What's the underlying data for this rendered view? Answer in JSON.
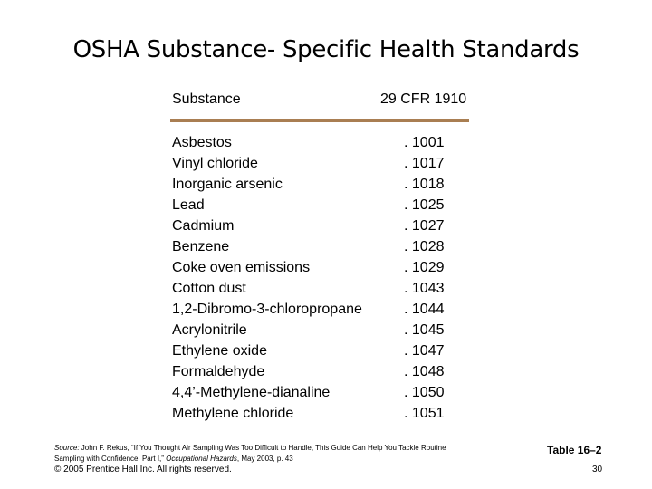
{
  "slide": {
    "title": "OSHA Substance- Specific Health Standards"
  },
  "table": {
    "headers": {
      "substance": "Substance",
      "cfr": "29 CFR 1910"
    },
    "rule_color": "#a97e52",
    "rows": [
      {
        "substance": "Asbestos",
        "cfr": ". 1001"
      },
      {
        "substance": "Vinyl chloride",
        "cfr": ". 1017"
      },
      {
        "substance": "Inorganic arsenic",
        "cfr": ". 1018"
      },
      {
        "substance": "Lead",
        "cfr": ". 1025"
      },
      {
        "substance": "Cadmium",
        "cfr": ". 1027"
      },
      {
        "substance": "Benzene",
        "cfr": ". 1028"
      },
      {
        "substance": "Coke oven emissions",
        "cfr": ". 1029"
      },
      {
        "substance": "Cotton dust",
        "cfr": ". 1043"
      },
      {
        "substance": "1,2-Dibromo-3-chloropropane",
        "cfr": ". 1044"
      },
      {
        "substance": "Acrylonitrile",
        "cfr": ". 1045"
      },
      {
        "substance": "Ethylene oxide",
        "cfr": ". 1047"
      },
      {
        "substance": "Formaldehyde",
        "cfr": ". 1048"
      },
      {
        "substance": "4,4’-Methylene-dianaline",
        "cfr": ". 1050"
      },
      {
        "substance": "Methylene chloride",
        "cfr": ". 1051"
      }
    ]
  },
  "footer": {
    "source_label": "Source:",
    "source_text": " John F. Rekus, “If You Thought Air Sampling Was Too Difficult to Handle, This Guide Can Help You Tackle Routine Sampling with Confidence, Part I,” ",
    "source_journal": "Occupational Hazards",
    "source_tail": ", May 2003, p. 43",
    "table_label": "Table 16–2",
    "copyright": "© 2005 Prentice Hall Inc. All rights reserved.",
    "page_number": "30"
  }
}
